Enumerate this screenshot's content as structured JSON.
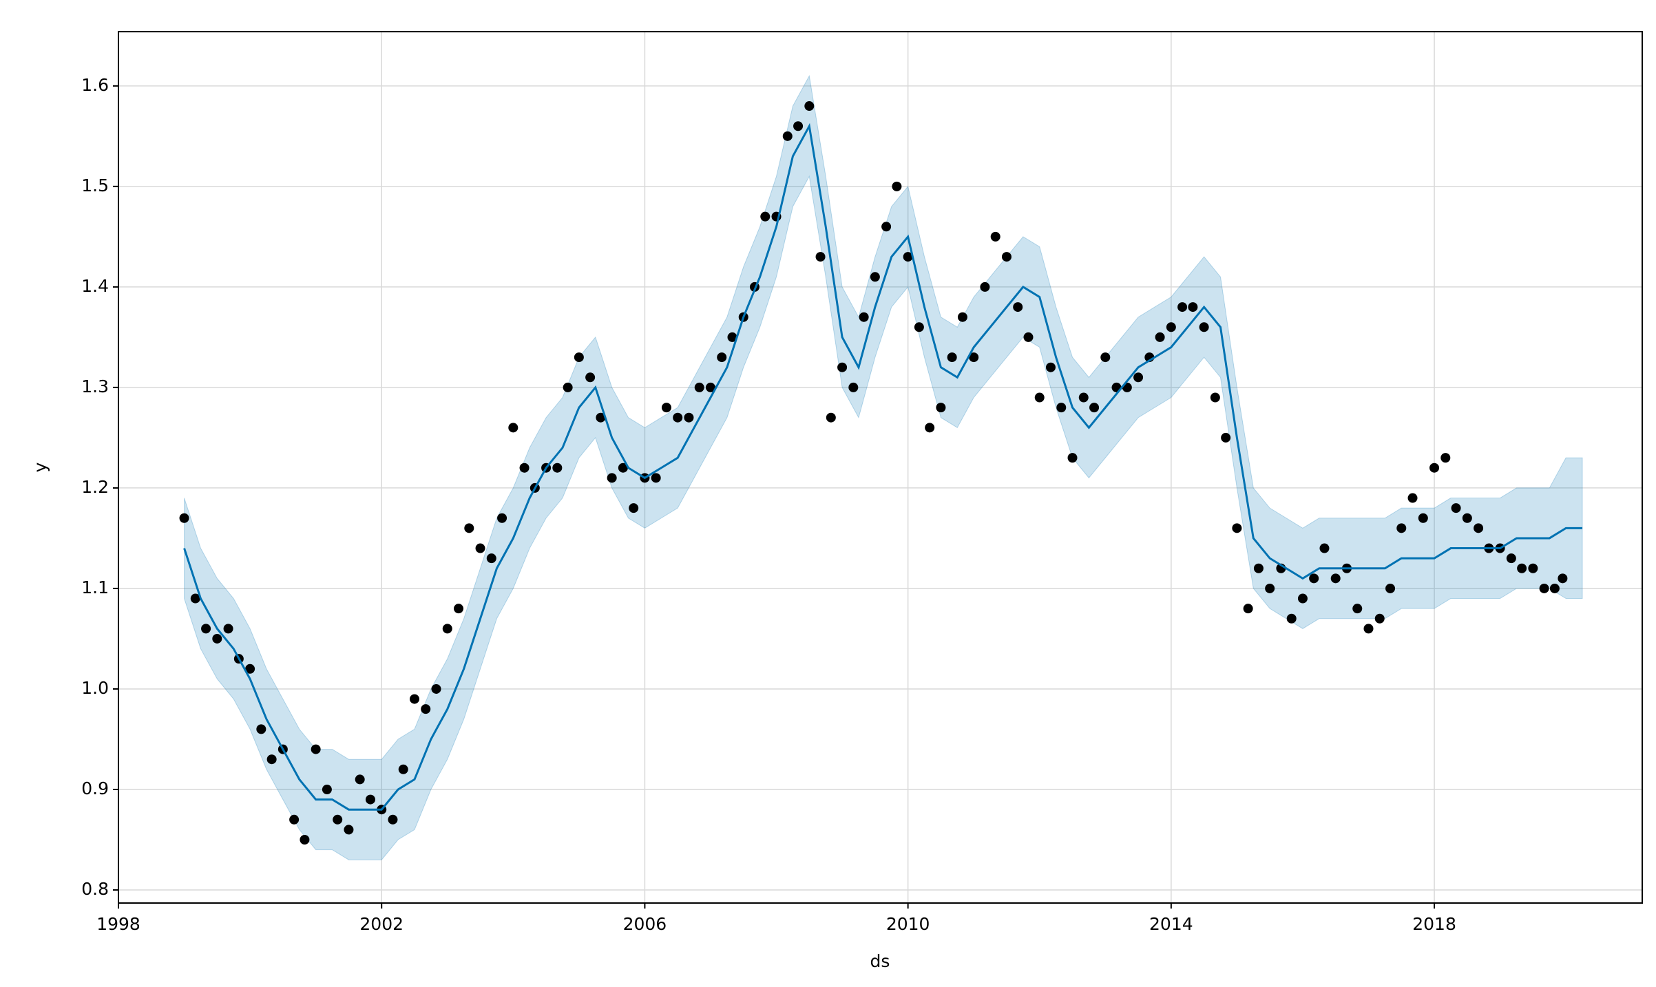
{
  "chart_data": {
    "type": "scatter",
    "x_label": "ds",
    "y_label": "y",
    "xlim": [
      1998,
      2021.16
    ],
    "ylim": [
      0.787,
      1.654
    ],
    "xticks": [
      1998,
      2002,
      2006,
      2010,
      2014,
      2018
    ],
    "yticks": [
      {
        "value": 0.8,
        "label": "0.8"
      },
      {
        "value": 0.9,
        "label": "0.9"
      },
      {
        "value": 1.0,
        "label": "1.0"
      },
      {
        "value": 1.1,
        "label": "1.1"
      },
      {
        "value": 1.2,
        "label": "1.2"
      },
      {
        "value": 1.3,
        "label": "1.3"
      },
      {
        "value": 1.4,
        "label": "1.4"
      },
      {
        "value": 1.5,
        "label": "1.5"
      },
      {
        "value": 1.6,
        "label": "1.6"
      }
    ],
    "grid": true,
    "points": {
      "color": "#000000",
      "x": [
        1999.0,
        1999.17,
        1999.33,
        1999.5,
        1999.67,
        1999.83,
        2000.0,
        2000.17,
        2000.33,
        2000.5,
        2000.67,
        2000.83,
        2001.0,
        2001.17,
        2001.33,
        2001.5,
        2001.67,
        2001.83,
        2002.0,
        2002.17,
        2002.33,
        2002.5,
        2002.67,
        2002.83,
        2003.0,
        2003.17,
        2003.33,
        2003.5,
        2003.67,
        2003.83,
        2004.0,
        2004.17,
        2004.33,
        2004.5,
        2004.67,
        2004.83,
        2005.0,
        2005.17,
        2005.33,
        2005.5,
        2005.67,
        2005.83,
        2006.0,
        2006.17,
        2006.33,
        2006.5,
        2006.67,
        2006.83,
        2007.0,
        2007.17,
        2007.33,
        2007.5,
        2007.67,
        2007.83,
        2008.0,
        2008.17,
        2008.33,
        2008.5,
        2008.67,
        2008.83,
        2009.0,
        2009.17,
        2009.33,
        2009.5,
        2009.67,
        2009.83,
        2010.0,
        2010.17,
        2010.33,
        2010.5,
        2010.67,
        2010.83,
        2011.0,
        2011.17,
        2011.33,
        2011.5,
        2011.67,
        2011.83,
        2012.0,
        2012.17,
        2012.33,
        2012.5,
        2012.67,
        2012.83,
        2013.0,
        2013.17,
        2013.33,
        2013.5,
        2013.67,
        2013.83,
        2014.0,
        2014.17,
        2014.33,
        2014.5,
        2014.67,
        2014.83,
        2015.0,
        2015.17,
        2015.33,
        2015.5,
        2015.67,
        2015.83,
        2016.0,
        2016.17,
        2016.33,
        2016.5,
        2016.67,
        2016.83,
        2017.0,
        2017.17,
        2017.33,
        2017.5,
        2017.67,
        2017.83,
        2018.0,
        2018.17,
        2018.33,
        2018.5,
        2018.67,
        2018.83,
        2019.0,
        2019.17,
        2019.33,
        2019.5,
        2019.67,
        2019.83,
        2019.95
      ],
      "values": [
        1.17,
        1.09,
        1.06,
        1.05,
        1.06,
        1.03,
        1.02,
        0.96,
        0.93,
        0.94,
        0.87,
        0.85,
        0.94,
        0.9,
        0.87,
        0.86,
        0.91,
        0.89,
        0.88,
        0.87,
        0.92,
        0.99,
        0.98,
        1.0,
        1.06,
        1.08,
        1.16,
        1.14,
        1.13,
        1.17,
        1.26,
        1.22,
        1.2,
        1.22,
        1.22,
        1.3,
        1.33,
        1.31,
        1.27,
        1.21,
        1.22,
        1.18,
        1.21,
        1.21,
        1.28,
        1.27,
        1.27,
        1.3,
        1.3,
        1.33,
        1.35,
        1.37,
        1.4,
        1.47,
        1.47,
        1.55,
        1.56,
        1.58,
        1.43,
        1.27,
        1.32,
        1.3,
        1.37,
        1.41,
        1.46,
        1.5,
        1.43,
        1.36,
        1.26,
        1.28,
        1.33,
        1.37,
        1.33,
        1.4,
        1.45,
        1.43,
        1.38,
        1.35,
        1.29,
        1.32,
        1.28,
        1.23,
        1.29,
        1.28,
        1.33,
        1.3,
        1.3,
        1.31,
        1.33,
        1.35,
        1.36,
        1.38,
        1.38,
        1.36,
        1.29,
        1.25,
        1.16,
        1.08,
        1.12,
        1.1,
        1.12,
        1.07,
        1.09,
        1.11,
        1.14,
        1.11,
        1.12,
        1.08,
        1.06,
        1.07,
        1.1,
        1.16,
        1.19,
        1.17,
        1.22,
        1.23,
        1.18,
        1.17,
        1.16,
        1.14,
        1.14,
        1.13,
        1.12,
        1.12,
        1.1,
        1.1,
        1.11
      ]
    },
    "forecast": {
      "color": "#0072b2",
      "x": [
        1999.0,
        1999.25,
        1999.5,
        1999.75,
        2000.0,
        2000.25,
        2000.5,
        2000.75,
        2001.0,
        2001.25,
        2001.5,
        2001.75,
        2002.0,
        2002.25,
        2002.5,
        2002.75,
        2003.0,
        2003.25,
        2003.5,
        2003.75,
        2004.0,
        2004.25,
        2004.5,
        2004.75,
        2005.0,
        2005.25,
        2005.5,
        2005.75,
        2006.0,
        2006.25,
        2006.5,
        2006.75,
        2007.0,
        2007.25,
        2007.5,
        2007.75,
        2008.0,
        2008.25,
        2008.5,
        2008.75,
        2009.0,
        2009.25,
        2009.5,
        2009.75,
        2010.0,
        2010.25,
        2010.5,
        2010.75,
        2011.0,
        2011.25,
        2011.5,
        2011.75,
        2012.0,
        2012.25,
        2012.5,
        2012.75,
        2013.0,
        2013.25,
        2013.5,
        2013.75,
        2014.0,
        2014.25,
        2014.5,
        2014.75,
        2015.0,
        2015.25,
        2015.5,
        2015.75,
        2016.0,
        2016.25,
        2016.5,
        2016.75,
        2017.0,
        2017.25,
        2017.5,
        2017.75,
        2018.0,
        2018.25,
        2018.5,
        2018.75,
        2019.0,
        2019.25,
        2019.5,
        2019.75,
        2020.0,
        2020.25
      ],
      "values": [
        1.14,
        1.09,
        1.06,
        1.04,
        1.01,
        0.97,
        0.94,
        0.91,
        0.89,
        0.89,
        0.88,
        0.88,
        0.88,
        0.9,
        0.91,
        0.95,
        0.98,
        1.02,
        1.07,
        1.12,
        1.15,
        1.19,
        1.22,
        1.24,
        1.28,
        1.3,
        1.25,
        1.22,
        1.21,
        1.22,
        1.23,
        1.26,
        1.29,
        1.32,
        1.37,
        1.41,
        1.46,
        1.53,
        1.56,
        1.46,
        1.35,
        1.32,
        1.38,
        1.43,
        1.45,
        1.38,
        1.32,
        1.31,
        1.34,
        1.36,
        1.38,
        1.4,
        1.39,
        1.33,
        1.28,
        1.26,
        1.28,
        1.3,
        1.32,
        1.33,
        1.34,
        1.36,
        1.38,
        1.36,
        1.25,
        1.15,
        1.13,
        1.12,
        1.11,
        1.12,
        1.12,
        1.12,
        1.12,
        1.12,
        1.13,
        1.13,
        1.13,
        1.14,
        1.14,
        1.14,
        1.14,
        1.15,
        1.15,
        1.15,
        1.16,
        1.16
      ],
      "upper": [
        1.19,
        1.14,
        1.11,
        1.09,
        1.06,
        1.02,
        0.99,
        0.96,
        0.94,
        0.94,
        0.93,
        0.93,
        0.93,
        0.95,
        0.96,
        1.0,
        1.03,
        1.07,
        1.12,
        1.17,
        1.2,
        1.24,
        1.27,
        1.29,
        1.33,
        1.35,
        1.3,
        1.27,
        1.26,
        1.27,
        1.28,
        1.31,
        1.34,
        1.37,
        1.42,
        1.46,
        1.51,
        1.58,
        1.61,
        1.51,
        1.4,
        1.37,
        1.43,
        1.48,
        1.5,
        1.43,
        1.37,
        1.36,
        1.39,
        1.41,
        1.43,
        1.45,
        1.44,
        1.38,
        1.33,
        1.31,
        1.33,
        1.35,
        1.37,
        1.38,
        1.39,
        1.41,
        1.43,
        1.41,
        1.3,
        1.2,
        1.18,
        1.17,
        1.16,
        1.17,
        1.17,
        1.17,
        1.17,
        1.17,
        1.18,
        1.18,
        1.18,
        1.19,
        1.19,
        1.19,
        1.19,
        1.2,
        1.2,
        1.2,
        1.23,
        1.23
      ],
      "lower": [
        1.09,
        1.04,
        1.01,
        0.99,
        0.96,
        0.92,
        0.89,
        0.86,
        0.84,
        0.84,
        0.83,
        0.83,
        0.83,
        0.85,
        0.86,
        0.9,
        0.93,
        0.97,
        1.02,
        1.07,
        1.1,
        1.14,
        1.17,
        1.19,
        1.23,
        1.25,
        1.2,
        1.17,
        1.16,
        1.17,
        1.18,
        1.21,
        1.24,
        1.27,
        1.32,
        1.36,
        1.41,
        1.48,
        1.51,
        1.41,
        1.3,
        1.27,
        1.33,
        1.38,
        1.4,
        1.33,
        1.27,
        1.26,
        1.29,
        1.31,
        1.33,
        1.35,
        1.34,
        1.28,
        1.23,
        1.21,
        1.23,
        1.25,
        1.27,
        1.28,
        1.29,
        1.31,
        1.33,
        1.31,
        1.2,
        1.1,
        1.08,
        1.07,
        1.06,
        1.07,
        1.07,
        1.07,
        1.07,
        1.07,
        1.08,
        1.08,
        1.08,
        1.09,
        1.09,
        1.09,
        1.09,
        1.1,
        1.1,
        1.1,
        1.09,
        1.09
      ]
    }
  }
}
